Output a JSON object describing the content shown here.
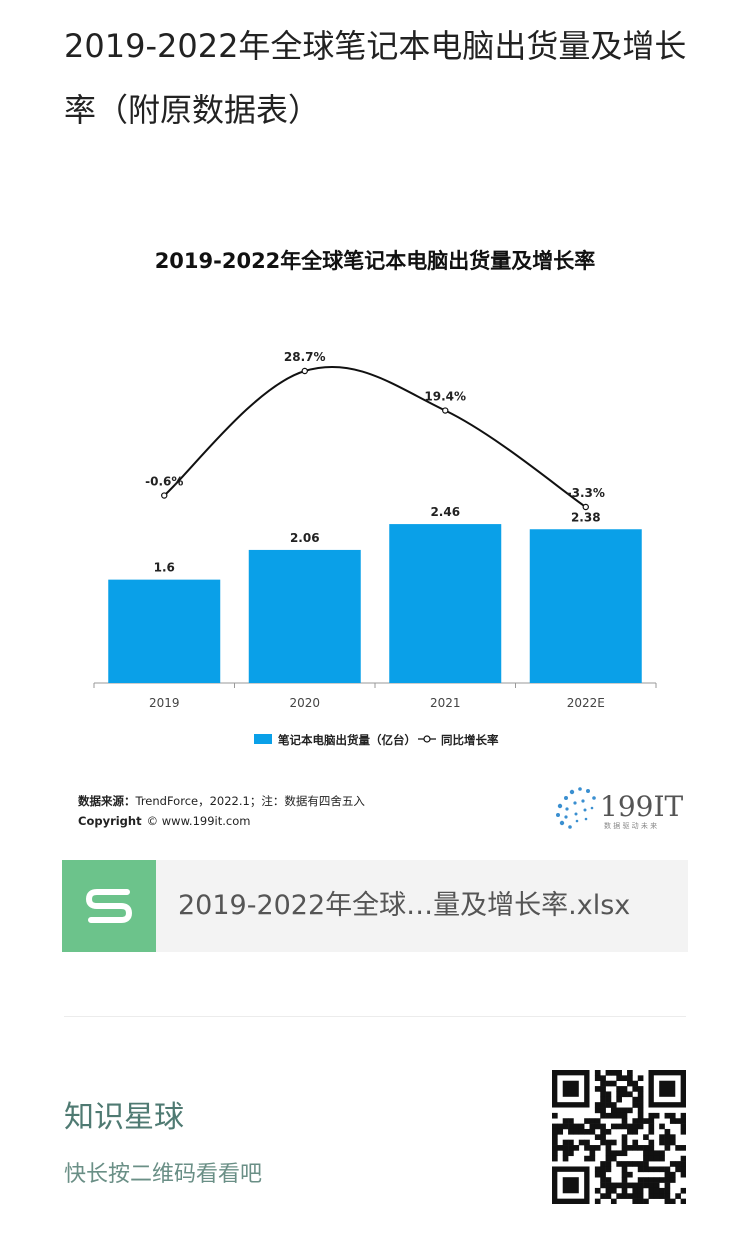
{
  "page": {
    "title": "2019-2022年全球笔记本电脑出货量及增长率（附原数据表）"
  },
  "chart_data": {
    "type": "bar",
    "title": "2019-2022年全球笔记本电脑出货量及增长率",
    "categories": [
      "2019",
      "2020",
      "2021",
      "2022E"
    ],
    "series": [
      {
        "name": "笔记本电脑出货量（亿台）",
        "type": "bar",
        "values": [
          1.6,
          2.06,
          2.46,
          2.38
        ],
        "labels": [
          "1.6",
          "2.06",
          "2.46",
          "2.38"
        ]
      },
      {
        "name": "同比增长率",
        "type": "line",
        "values": [
          -0.6,
          28.7,
          19.4,
          -3.3
        ],
        "labels": [
          "-0.6%",
          "28.7%",
          "19.4%",
          "-3.3%"
        ]
      }
    ],
    "colors": {
      "bar": "#0aa0e8",
      "line": "#111111"
    },
    "legend_position": "bottom",
    "grid": false
  },
  "source": {
    "label": "数据来源：",
    "text": "TrendForce，2022.1；注：数据有四舍五入",
    "copyright_label": "Copyright",
    "copyright_text": "© www.199it.com"
  },
  "logo": {
    "name": "199IT",
    "tagline": "数 据 驱 动 未 来"
  },
  "attachment": {
    "icon": "spreadsheet-s-icon",
    "icon_letter": "S",
    "filename": "2019-2022年全球…量及增长率.xlsx"
  },
  "footer": {
    "title": "知识星球",
    "hint": "快长按二维码看看吧"
  }
}
